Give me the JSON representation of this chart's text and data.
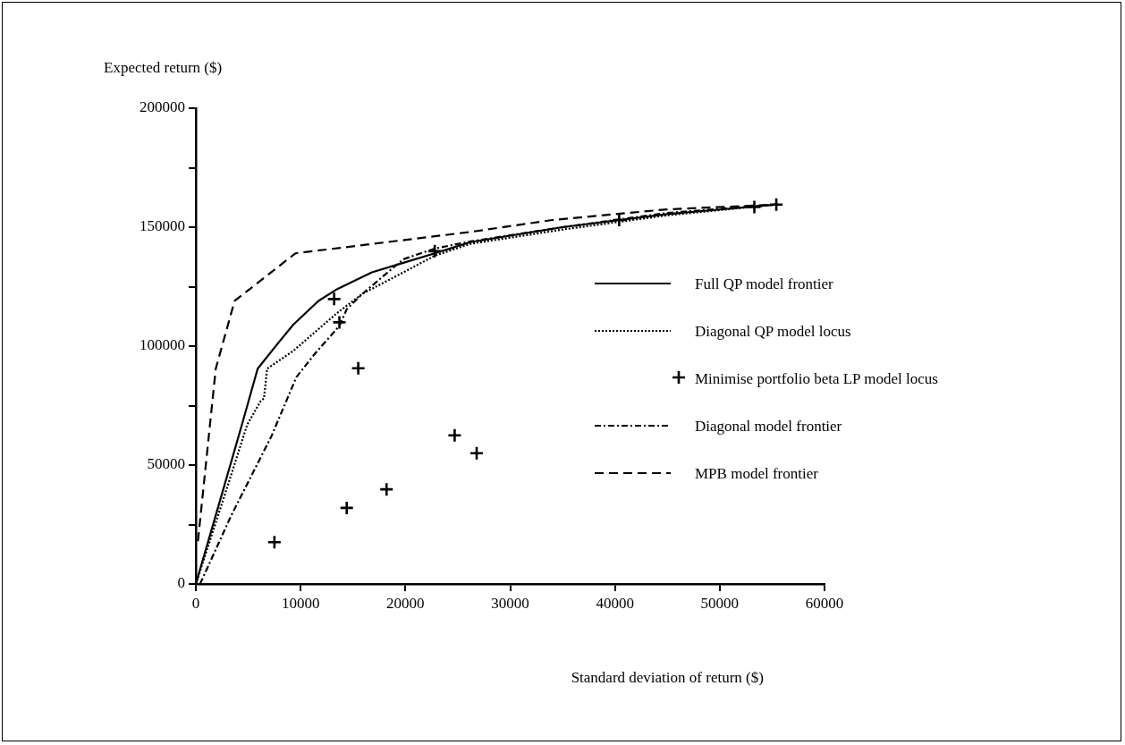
{
  "chart_data": {
    "type": "line",
    "xlabel": "Standard deviation of return ($)",
    "ylabel": "Expected return ($)",
    "xlim": [
      0,
      60000
    ],
    "ylim": [
      0,
      200000
    ],
    "xticks": [
      0,
      10000,
      20000,
      30000,
      40000,
      50000,
      60000
    ],
    "yticks": [
      0,
      {
        "value": 25000,
        "label": null
      },
      50000,
      {
        "value": 75000,
        "label": null
      },
      100000,
      {
        "value": 125000,
        "label": null
      },
      150000,
      {
        "value": 175000,
        "label": null
      },
      200000
    ],
    "grid": false,
    "legend": "right",
    "series": [
      {
        "name": "Full QP model frontier",
        "color": "#000000",
        "line_style": "solid",
        "marker": "none",
        "x": [
          0,
          2500,
          4400,
          5900,
          7800,
          9300,
          11700,
          13500,
          16800,
          19800,
          22800,
          26200,
          35000,
          45000,
          55400
        ],
        "values": [
          0,
          38000,
          67000,
          90500,
          101000,
          109000,
          119000,
          124000,
          131000,
          135000,
          139000,
          143700,
          150000,
          155500,
          159500
        ]
      },
      {
        "name": "Diagonal QP model locus",
        "color": "#000000",
        "line_style": "dotted",
        "marker": "none",
        "x": [
          0,
          2800,
          4900,
          6200,
          6500,
          6800,
          9300,
          13500,
          15900,
          19800,
          22800,
          26200,
          35000,
          45000,
          55400
        ],
        "values": [
          0,
          38000,
          67000,
          77000,
          78000,
          90500,
          98000,
          114000,
          122000,
          131000,
          138000,
          143000,
          149000,
          155000,
          159500
        ]
      },
      {
        "name": "Minimise portfolio beta LP model locus",
        "type": "scatter",
        "color": "#000000",
        "marker": "cross",
        "x": [
          7500,
          14400,
          18200,
          15500,
          13700,
          13200,
          22800,
          24700,
          26800,
          40400,
          53300,
          55400
        ],
        "values": [
          17600,
          32000,
          39800,
          90700,
          110000,
          119800,
          139900,
          62500,
          55000,
          153000,
          158500,
          159500
        ]
      },
      {
        "name": "Diagonal model frontier",
        "color": "#000000",
        "line_style": "dashdot",
        "marker": "none",
        "x": [
          400,
          3400,
          7200,
          9600,
          11400,
          13700,
          14400,
          15900,
          19800,
          22800,
          26200,
          35000,
          45000,
          55400
        ],
        "values": [
          0,
          29000,
          62000,
          87000,
          97000,
          108500,
          115500,
          122000,
          136500,
          141000,
          144000,
          150000,
          156000,
          159500
        ]
      },
      {
        "name": "MPB model frontier",
        "color": "#000000",
        "line_style": "dashed",
        "marker": "none",
        "x": [
          200,
          1900,
          3700,
          9500,
          26200,
          34000,
          45000,
          55400
        ],
        "values": [
          18000,
          90500,
          119000,
          139000,
          148000,
          153000,
          157500,
          159500
        ]
      }
    ]
  }
}
